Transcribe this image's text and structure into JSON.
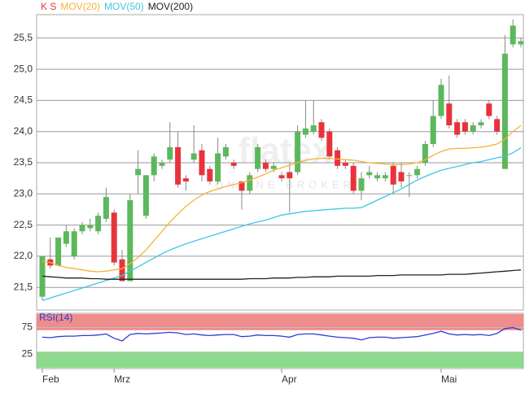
{
  "chart_data": [
    {
      "type": "candlestick",
      "watermark": "flatex",
      "watermark_sub": "ONLINE BROKER",
      "ohlc": {
        "name": "K S",
        "color": "#e8333c",
        "up_color": "#5cb85c",
        "down_color": "#e8333c",
        "open": [
          21.35,
          21.95,
          21.85,
          22.2,
          22.0,
          22.4,
          22.45,
          22.4,
          22.6,
          22.7,
          21.95,
          21.6,
          23.3,
          22.65,
          23.3,
          23.45,
          23.55,
          23.75,
          23.25,
          23.55,
          23.7,
          23.4,
          23.2,
          23.6,
          23.5,
          23.2,
          23.05,
          23.4,
          23.5,
          23.4,
          23.3,
          23.35,
          23.35,
          23.95,
          24.0,
          24.15,
          24.0,
          23.7,
          23.5,
          23.45,
          23.05,
          23.3,
          23.25,
          23.25,
          23.45,
          23.35,
          23.3,
          23.3,
          23.5,
          23.8,
          24.25,
          24.45,
          24.15,
          24.15,
          24.0,
          24.1,
          24.45,
          24.2,
          23.4,
          25.4,
          25.4
        ],
        "high": [
          22.0,
          22.3,
          22.3,
          22.5,
          22.45,
          22.55,
          22.6,
          22.7,
          23.1,
          22.75,
          22.1,
          23.0,
          23.7,
          23.3,
          23.65,
          23.55,
          24.15,
          24.0,
          23.3,
          24.1,
          23.8,
          23.45,
          23.9,
          23.8,
          23.55,
          23.2,
          23.35,
          23.8,
          23.55,
          23.5,
          23.35,
          23.5,
          24.1,
          24.5,
          24.5,
          24.2,
          24.05,
          23.75,
          23.55,
          23.5,
          23.35,
          23.45,
          23.35,
          23.35,
          23.5,
          23.5,
          23.35,
          23.45,
          23.85,
          24.5,
          24.85,
          24.9,
          24.2,
          24.2,
          24.15,
          24.2,
          24.5,
          24.25,
          25.55,
          25.8,
          25.5
        ],
        "low": [
          21.3,
          21.8,
          21.85,
          22.15,
          21.95,
          22.35,
          22.4,
          22.35,
          22.55,
          21.85,
          21.6,
          21.6,
          23.0,
          22.6,
          23.2,
          23.4,
          23.5,
          23.1,
          23.05,
          23.5,
          23.2,
          23.15,
          23.15,
          23.55,
          23.4,
          22.75,
          23.0,
          23.35,
          23.35,
          23.35,
          23.2,
          22.7,
          23.3,
          23.9,
          23.95,
          23.85,
          23.55,
          23.4,
          23.4,
          23.0,
          22.9,
          23.25,
          23.2,
          23.2,
          23.0,
          23.1,
          22.95,
          23.25,
          23.45,
          23.75,
          24.2,
          24.05,
          23.9,
          23.95,
          23.95,
          24.05,
          24.2,
          23.95,
          23.4,
          25.35,
          25.35
        ],
        "close": [
          22.0,
          21.85,
          22.3,
          22.4,
          22.4,
          22.5,
          22.5,
          22.65,
          22.95,
          21.9,
          21.6,
          22.9,
          23.4,
          23.3,
          23.6,
          23.5,
          23.75,
          23.15,
          23.2,
          23.65,
          23.3,
          23.2,
          23.65,
          23.75,
          23.45,
          23.05,
          23.3,
          23.75,
          23.4,
          23.45,
          23.25,
          23.25,
          24.0,
          24.05,
          24.1,
          23.9,
          23.6,
          23.45,
          23.45,
          23.05,
          23.25,
          23.35,
          23.3,
          23.3,
          23.15,
          23.2,
          23.3,
          23.4,
          23.8,
          24.25,
          24.75,
          24.1,
          23.95,
          24.0,
          24.1,
          24.15,
          24.25,
          24.0,
          25.25,
          25.7,
          25.45
        ]
      },
      "series": [
        {
          "name": "MOV(20)",
          "color": "#f5b335",
          "values": [
            21.92,
            21.9,
            21.85,
            21.82,
            21.8,
            21.78,
            21.76,
            21.75,
            21.76,
            21.78,
            21.8,
            21.88,
            21.98,
            22.1,
            22.25,
            22.4,
            22.55,
            22.68,
            22.8,
            22.9,
            22.98,
            23.04,
            23.08,
            23.12,
            23.15,
            23.18,
            23.22,
            23.27,
            23.32,
            23.38,
            23.42,
            23.46,
            23.5,
            23.54,
            23.56,
            23.57,
            23.57,
            23.56,
            23.55,
            23.54,
            23.52,
            23.5,
            23.49,
            23.48,
            23.47,
            23.47,
            23.48,
            23.5,
            23.55,
            23.62,
            23.68,
            23.72,
            23.73,
            23.73,
            23.74,
            23.75,
            23.77,
            23.8,
            23.88,
            24.0,
            24.1
          ]
        },
        {
          "name": "MOV(50)",
          "color": "#3cc8e6",
          "values": [
            21.29,
            21.33,
            21.37,
            21.41,
            21.45,
            21.49,
            21.53,
            21.57,
            21.61,
            21.65,
            21.69,
            21.76,
            21.83,
            21.9,
            21.97,
            22.04,
            22.1,
            22.15,
            22.2,
            22.24,
            22.28,
            22.32,
            22.36,
            22.4,
            22.44,
            22.48,
            22.52,
            22.55,
            22.58,
            22.62,
            22.66,
            22.68,
            22.7,
            22.72,
            22.73,
            22.74,
            22.75,
            22.76,
            22.77,
            22.77,
            22.78,
            22.84,
            22.9,
            22.96,
            23.02,
            23.08,
            23.15,
            23.22,
            23.28,
            23.33,
            23.38,
            23.41,
            23.44,
            23.47,
            23.5,
            23.52,
            23.55,
            23.58,
            23.6,
            23.66,
            23.74
          ]
        },
        {
          "name": "MOV(200)",
          "color": "#222222",
          "values": [
            21.68,
            21.67,
            21.66,
            21.65,
            21.65,
            21.65,
            21.64,
            21.64,
            21.63,
            21.63,
            21.63,
            21.63,
            21.63,
            21.63,
            21.63,
            21.63,
            21.63,
            21.63,
            21.63,
            21.63,
            21.63,
            21.63,
            21.63,
            21.63,
            21.63,
            21.63,
            21.64,
            21.64,
            21.64,
            21.65,
            21.65,
            21.65,
            21.66,
            21.66,
            21.67,
            21.67,
            21.67,
            21.68,
            21.68,
            21.68,
            21.68,
            21.68,
            21.69,
            21.69,
            21.69,
            21.7,
            21.7,
            21.7,
            21.7,
            21.7,
            21.7,
            21.71,
            21.71,
            21.71,
            21.72,
            21.73,
            21.74,
            21.75,
            21.76,
            21.77,
            21.78
          ]
        }
      ],
      "ylim": [
        21.15,
        25.85
      ],
      "yticks": [
        {
          "value": 21.5,
          "label": "21,5"
        },
        {
          "value": 22.0,
          "label": "22,0"
        },
        {
          "value": 22.5,
          "label": "22,5"
        },
        {
          "value": 23.0,
          "label": "23,0"
        },
        {
          "value": 23.5,
          "label": "23,5"
        },
        {
          "value": 24.0,
          "label": "24,0"
        },
        {
          "value": 24.5,
          "label": "24,5"
        },
        {
          "value": 25.0,
          "label": "25,0"
        },
        {
          "value": 25.5,
          "label": "25,5"
        }
      ],
      "grid": true
    },
    {
      "type": "line",
      "categories": [
        "Feb",
        null,
        null,
        null,
        null,
        null,
        null,
        null,
        null,
        "Mrz",
        null,
        null,
        null,
        null,
        null,
        null,
        null,
        null,
        null,
        null,
        null,
        null,
        null,
        null,
        null,
        null,
        null,
        null,
        null,
        null,
        "Apr",
        null,
        null,
        null,
        null,
        null,
        null,
        null,
        null,
        null,
        null,
        null,
        null,
        null,
        null,
        null,
        null,
        null,
        null,
        null,
        "Mai",
        null,
        null,
        null,
        null,
        null,
        null,
        null,
        null,
        null,
        null
      ],
      "series": [
        {
          "name": "RSI(14)",
          "color": "#2a3fd6",
          "values": [
            57,
            56,
            58,
            59,
            59,
            60,
            60,
            61,
            63,
            55,
            50,
            62,
            64,
            63,
            64,
            65,
            66,
            65,
            62,
            63,
            61,
            60,
            61,
            62,
            62,
            58,
            59,
            61,
            60,
            60,
            59,
            57,
            62,
            63,
            63,
            61,
            59,
            57,
            56,
            55,
            52,
            56,
            57,
            57,
            55,
            56,
            57,
            58,
            61,
            64,
            68,
            63,
            61,
            62,
            61,
            62,
            60,
            64,
            73,
            75,
            70
          ]
        }
      ],
      "ylim": [
        0,
        100
      ],
      "yticks": [
        25,
        75
      ],
      "bands": [
        {
          "range": [
            70,
            100
          ],
          "color": "#f08080"
        },
        {
          "range": [
            0,
            30
          ],
          "color": "#7fd67f"
        }
      ]
    }
  ]
}
